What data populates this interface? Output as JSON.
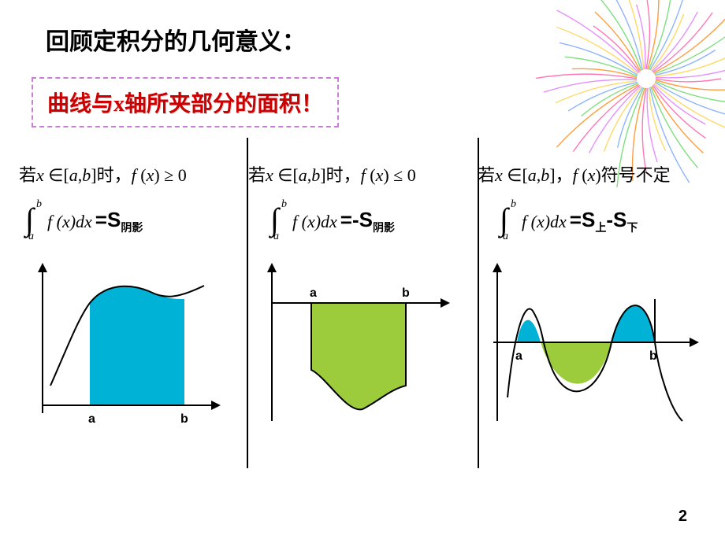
{
  "title": "回顾定积分的几何意义：",
  "subtitle": "曲线与x轴所夹部分的面积！",
  "page_number": "2",
  "colors": {
    "title_color": "#000000",
    "subtitle_color": "#cc0000",
    "subtitle_border": "#c97fd6",
    "divider": "#000000",
    "fill_positive": "#00b2d6",
    "fill_negative": "#9ccb3c",
    "axis": "#000000",
    "firework_colors": [
      "#ff5ea8",
      "#ff8c1a",
      "#66d966",
      "#7aa7ff",
      "#ffd24d",
      "#e07dff"
    ]
  },
  "cases": [
    {
      "condition_prefix": "若",
      "condition_expr_html": "x ∈[a, b]时，f (x) ≥ 0",
      "integral_lower": "a",
      "integral_upper": "b",
      "integrand": "f (x)dx",
      "rhs_prefix": "=S",
      "rhs_sub": "阴影",
      "plot": {
        "type": "pos",
        "a_label": "a",
        "b_label": "b"
      }
    },
    {
      "condition_prefix": "若",
      "condition_expr_html": "x ∈[a, b]时，f (x) ≤ 0",
      "integral_lower": "a",
      "integral_upper": "b",
      "integrand": "f (x)dx",
      "rhs_prefix": "=-S",
      "rhs_sub": "阴影",
      "plot": {
        "type": "neg",
        "a_label": "a",
        "b_label": "b"
      }
    },
    {
      "condition_prefix": "若",
      "condition_expr_html": "x ∈[a, b]，f (x)符号不定",
      "integral_lower": "a",
      "integral_upper": "b",
      "integrand": "f (x)dx",
      "rhs_prefix": "=S",
      "rhs_sub": "上",
      "rhs_prefix2": "-S",
      "rhs_sub2": "下",
      "plot": {
        "type": "mixed",
        "a_label": "a",
        "b_label": "b"
      }
    }
  ]
}
